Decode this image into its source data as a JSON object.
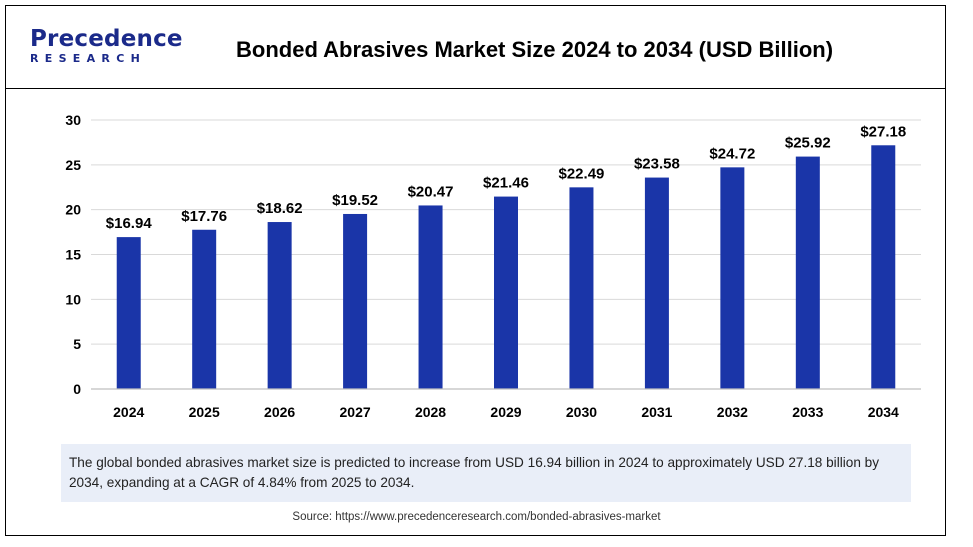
{
  "logo": {
    "line1": "Precedence",
    "line2": "RESEARCH"
  },
  "title": "Bonded Abrasives Market Size 2024 to 2034 (USD Billion)",
  "note": "The global bonded abrasives market size is predicted to increase from USD 16.94 billion in 2024 to approximately USD 27.18 billion by 2034, expanding at a CAGR of 4.84% from 2025 to 2034.",
  "source": "Source: https://www.precedenceresearch.com/bonded-abrasives-market",
  "colors": {
    "bar": "#1a35a8",
    "grid": "#d9d9d9",
    "brand": "#1b2a8a",
    "note_bg": "#e9eef8"
  },
  "chart_data": {
    "type": "bar",
    "title": "Bonded Abrasives Market Size 2024 to 2034 (USD Billion)",
    "xlabel": "",
    "ylabel": "",
    "categories": [
      "2024",
      "2025",
      "2026",
      "2027",
      "2028",
      "2029",
      "2030",
      "2031",
      "2032",
      "2033",
      "2034"
    ],
    "values": [
      16.94,
      17.76,
      18.62,
      19.52,
      20.47,
      21.46,
      22.49,
      23.58,
      24.72,
      25.92,
      27.18
    ],
    "value_labels": [
      "$16.94",
      "$17.76",
      "$18.62",
      "$19.52",
      "$20.47",
      "$21.46",
      "$22.49",
      "$23.58",
      "$24.72",
      "$25.92",
      "$27.18"
    ],
    "yticks": [
      "0",
      "5",
      "10",
      "15",
      "20",
      "25",
      "30"
    ],
    "ylim": [
      0,
      30
    ],
    "grid": true,
    "legend": "none"
  }
}
